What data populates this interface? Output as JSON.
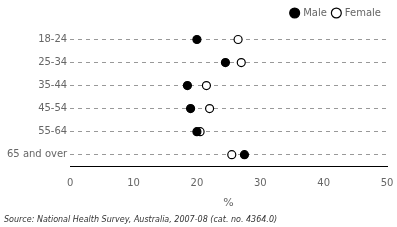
{
  "chart_data": {
    "type": "dot",
    "orientation": "horizontal",
    "categories": [
      "18-24",
      "25-34",
      "35-44",
      "45-54",
      "55-64",
      "65 and over"
    ],
    "series": [
      {
        "name": "Male",
        "color": "#000000",
        "marker": "filled_circle",
        "values": [
          20.0,
          24.5,
          18.5,
          19.0,
          20.0,
          27.5
        ]
      },
      {
        "name": "Female",
        "color": "#000000",
        "marker": "open_circle",
        "values": [
          26.5,
          27.0,
          21.5,
          22.0,
          20.5,
          25.5
        ]
      }
    ],
    "xlabel": "%",
    "xlim": [
      0,
      50
    ],
    "xticks": [
      0,
      10,
      20,
      30,
      40,
      50
    ],
    "grid": "y",
    "legend": "upper right",
    "annotations": [
      "Source: National Health Survey, Australia, 2007-08 (cat. no. 4364.0)"
    ]
  }
}
